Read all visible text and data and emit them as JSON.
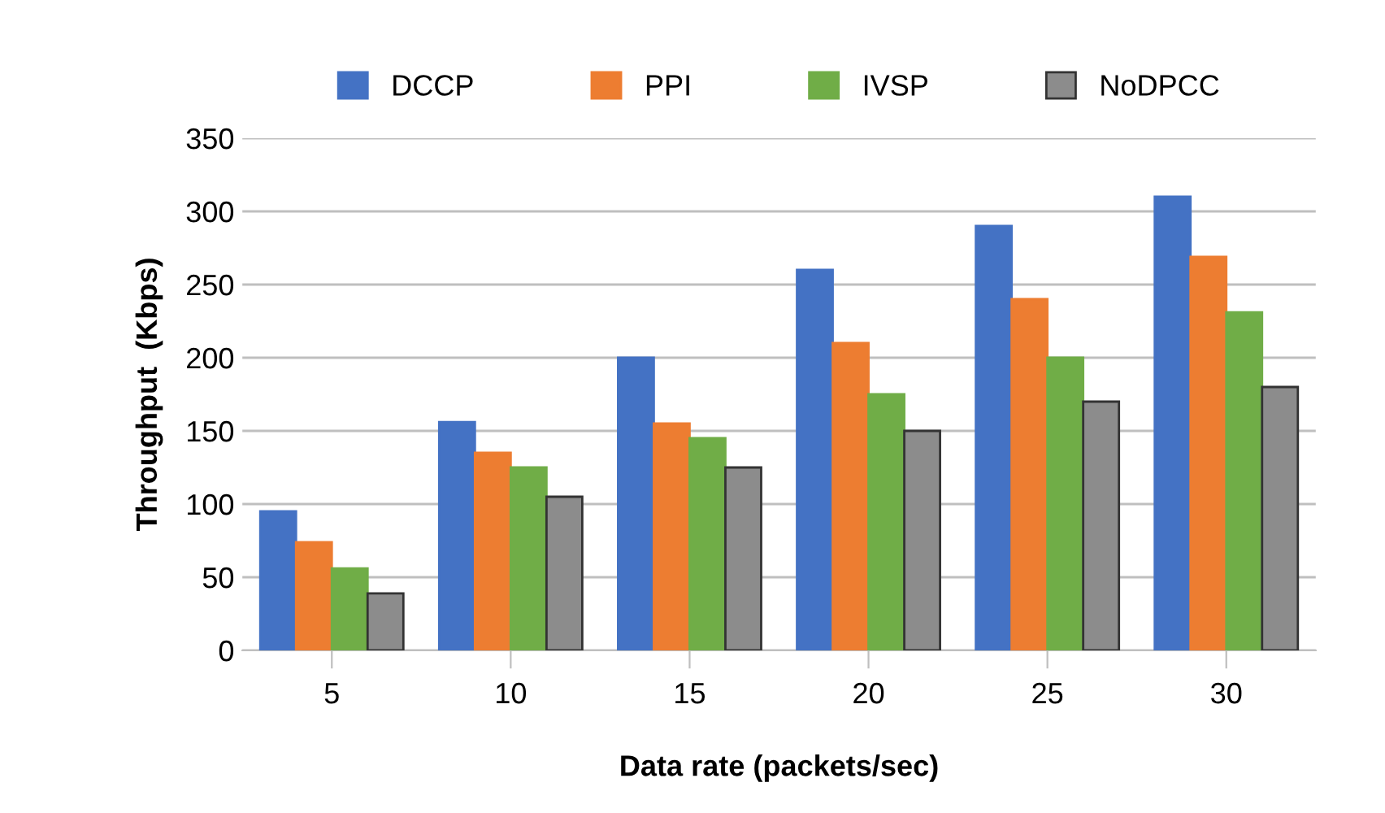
{
  "chart_data": {
    "type": "bar",
    "xlabel": "Data rate (packets/sec)",
    "ylabel": "Throughput  (Kbps)",
    "categories": [
      "5",
      "10",
      "15",
      "20",
      "25",
      "30"
    ],
    "series": [
      {
        "name": "DCCP",
        "color": "#4472c4",
        "values": [
          95,
          156,
          200,
          260,
          290,
          310
        ]
      },
      {
        "name": "PPI",
        "color": "#ed7d31",
        "values": [
          74,
          135,
          155,
          210,
          240,
          269
        ]
      },
      {
        "name": "IVSP",
        "color": "#70ad47",
        "values": [
          56,
          125,
          145,
          175,
          200,
          231
        ]
      },
      {
        "name": "NoDPCC",
        "color": "#8c8c8c",
        "values": [
          39,
          105,
          125,
          150,
          170,
          180
        ]
      }
    ],
    "ylim": [
      0,
      350
    ],
    "yticks": [
      0,
      50,
      100,
      150,
      200,
      250,
      300,
      350
    ],
    "grid": "y",
    "legend": "top"
  }
}
